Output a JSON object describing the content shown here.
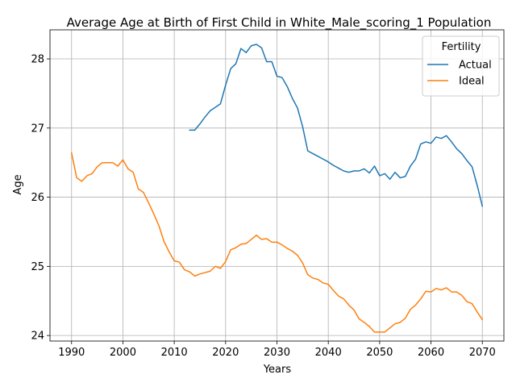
{
  "chart_data": {
    "type": "line",
    "title": "Average Age at Birth of First Child in White_Male_scoring_1 Population",
    "xlabel": "Years",
    "ylabel": "Age",
    "xlim": [
      1985.8,
      2074.2
    ],
    "ylim": [
      23.92,
      28.42
    ],
    "xticks": [
      1990,
      2000,
      2010,
      2020,
      2030,
      2040,
      2050,
      2060,
      2070
    ],
    "yticks": [
      24,
      25,
      26,
      27,
      28
    ],
    "grid": true,
    "legend": {
      "title": "Fertility",
      "position": "top-right"
    },
    "series": [
      {
        "name": "Actual",
        "color": "#1f77b4",
        "x": [
          2013,
          2014,
          2015,
          2016,
          2017,
          2018,
          2019,
          2020,
          2021,
          2022,
          2023,
          2024,
          2025,
          2026,
          2027,
          2028,
          2029,
          2030,
          2031,
          2032,
          2033,
          2034,
          2035,
          2036,
          2037,
          2038,
          2039,
          2040,
          2041,
          2042,
          2043,
          2044,
          2045,
          2046,
          2047,
          2048,
          2049,
          2050,
          2051,
          2052,
          2053,
          2054,
          2055,
          2056,
          2057,
          2058,
          2059,
          2060,
          2061,
          2062,
          2063,
          2064,
          2065,
          2066,
          2067,
          2068,
          2069,
          2070
        ],
        "y": [
          26.97,
          26.97,
          27.06,
          27.16,
          27.25,
          27.3,
          27.35,
          27.62,
          27.86,
          27.93,
          28.15,
          28.09,
          28.19,
          28.21,
          28.16,
          27.96,
          27.96,
          27.75,
          27.73,
          27.6,
          27.43,
          27.29,
          27.02,
          26.67,
          26.63,
          26.59,
          26.55,
          26.51,
          26.46,
          26.42,
          26.38,
          26.36,
          26.38,
          26.38,
          26.41,
          26.35,
          26.45,
          26.31,
          26.34,
          26.26,
          26.36,
          26.28,
          26.3,
          26.45,
          26.55,
          26.77,
          26.8,
          26.78,
          26.87,
          26.85,
          26.89,
          26.8,
          26.7,
          26.63,
          26.53,
          26.44,
          26.17,
          25.87
        ]
      },
      {
        "name": "Ideal",
        "color": "#ff7f0e",
        "x": [
          1990,
          1991,
          1992,
          1993,
          1994,
          1995,
          1996,
          1997,
          1998,
          1999,
          2000,
          2001,
          2002,
          2003,
          2004,
          2005,
          2006,
          2007,
          2008,
          2009,
          2010,
          2011,
          2012,
          2013,
          2014,
          2015,
          2016,
          2017,
          2018,
          2019,
          2020,
          2021,
          2022,
          2023,
          2024,
          2025,
          2026,
          2027,
          2028,
          2029,
          2030,
          2031,
          2032,
          2033,
          2034,
          2035,
          2036,
          2037,
          2038,
          2039,
          2040,
          2041,
          2042,
          2043,
          2044,
          2045,
          2046,
          2047,
          2048,
          2049,
          2050,
          2051,
          2052,
          2053,
          2054,
          2055,
          2056,
          2057,
          2058,
          2059,
          2060,
          2061,
          2062,
          2063,
          2064,
          2065,
          2066,
          2067,
          2068,
          2069,
          2070
        ],
        "y": [
          26.64,
          26.28,
          26.23,
          26.31,
          26.34,
          26.44,
          26.5,
          26.5,
          26.5,
          26.45,
          26.54,
          26.41,
          26.36,
          26.12,
          26.07,
          25.92,
          25.76,
          25.59,
          25.36,
          25.21,
          25.08,
          25.06,
          24.95,
          24.92,
          24.86,
          24.89,
          24.91,
          24.93,
          25.0,
          24.97,
          25.07,
          25.24,
          25.27,
          25.32,
          25.33,
          25.39,
          25.45,
          25.39,
          25.4,
          25.35,
          25.35,
          25.31,
          25.26,
          25.22,
          25.16,
          25.05,
          24.88,
          24.83,
          24.81,
          24.76,
          24.74,
          24.65,
          24.57,
          24.53,
          24.44,
          24.37,
          24.24,
          24.19,
          24.13,
          24.05,
          24.05,
          24.05,
          24.11,
          24.17,
          24.19,
          24.25,
          24.38,
          24.44,
          24.53,
          24.64,
          24.63,
          24.68,
          24.66,
          24.69,
          24.63,
          24.63,
          24.58,
          24.49,
          24.46,
          24.34,
          24.23
        ]
      }
    ]
  }
}
